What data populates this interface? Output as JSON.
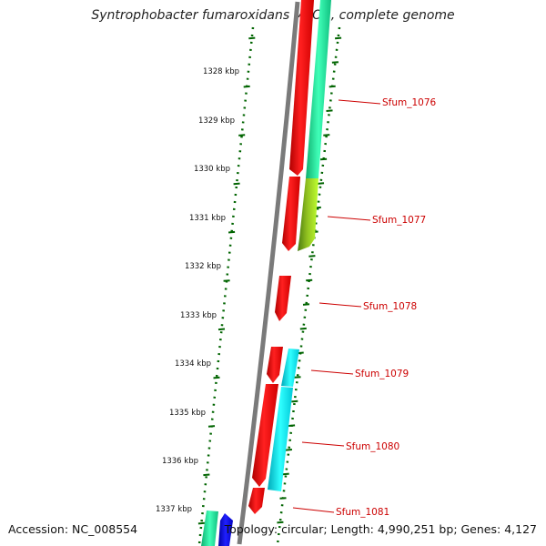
{
  "title": "Syntrophobacter fumaroxidans MPOB, complete genome",
  "footer": {
    "accession_label": "Accession:",
    "accession": "NC_008554",
    "topology_label": "Topology:",
    "topology": "circular",
    "length_label": "Length:",
    "length": "4,990,251 bp",
    "genes_label": "Genes:",
    "genes": "4,127"
  },
  "ticks": [
    "1328 kbp",
    "1329 kbp",
    "1330 kbp",
    "1331 kbp",
    "1332 kbp",
    "1333 kbp",
    "1334 kbp",
    "1335 kbp",
    "1336 kbp",
    "1337 kbp"
  ],
  "genes": [
    {
      "label": "Sfum_1076"
    },
    {
      "label": "Sfum_1077"
    },
    {
      "label": "Sfum_1078"
    },
    {
      "label": "Sfum_1079"
    },
    {
      "label": "Sfum_1080"
    },
    {
      "label": "Sfum_1081"
    }
  ],
  "colors": {
    "forward_cds": "#ff0000",
    "reverse_cds_teal": "#20f0a0",
    "reverse_cds_cyan": "#00e8f0",
    "reverse_cds_lime": "#a0e820",
    "other_blue": "#0000ff",
    "backbone": "#808080",
    "tick": "#006400",
    "gene_label": "#cc0000"
  }
}
